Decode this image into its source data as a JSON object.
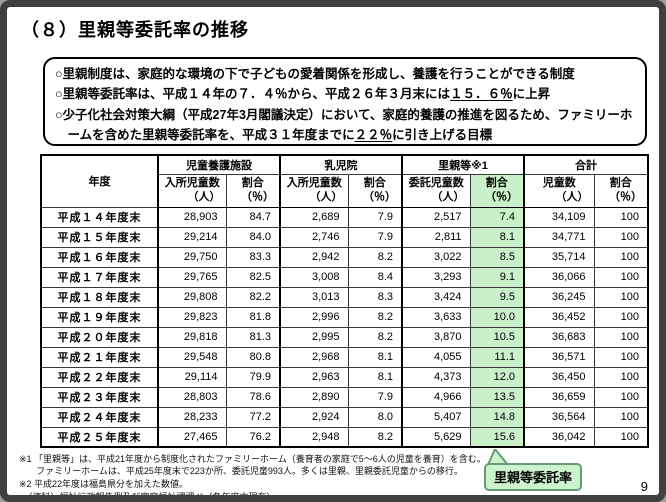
{
  "title": "（８）里親等委託率の推移",
  "summary_box": {
    "bullet1": "○里親制度は、家庭的な環境の下で子どもの愛着関係を形成し、養護を行うことができる制度",
    "bullet2_pre": "○里親等委託率は、平成１４年の７．４％から、平成２６年３月末には",
    "bullet2_underline": "１５．６％",
    "bullet2_post": "に上昇",
    "bullet3_pre": "○少子化社会対策大綱（平成27年3月閣議決定）において、家庭的養護の推進を図るため、ファミリーホームを含めた里親等委託率を、平成３１年度までに",
    "bullet3_underline": "２２％",
    "bullet3_post": "に引き上げる目標"
  },
  "table": {
    "header": {
      "year": "年度",
      "g1": {
        "label": "児童養護施設",
        "c1": "入所児童数",
        "c1u": "（人）",
        "c2": "割合",
        "c2u": "（％）"
      },
      "g2": {
        "label": "乳児院",
        "c1": "入所児童数",
        "c1u": "（人）",
        "c2": "割合",
        "c2u": "（％）"
      },
      "g3": {
        "label": "里親等※1",
        "c1": "委託児童数",
        "c1u": "（人）",
        "c2": "割合",
        "c2u": "（％）"
      },
      "g4": {
        "label": "合計",
        "c1": "児童数",
        "c1u": "（人）",
        "c2": "割合",
        "c2u": "（％）"
      }
    },
    "rows": [
      {
        "year": "平成１４年度末",
        "values": [
          "28,903",
          "84.7",
          "2,689",
          "7.9",
          "2,517",
          "7.4",
          "34,109",
          "100"
        ]
      },
      {
        "year": "平成１５年度末",
        "values": [
          "29,214",
          "84.0",
          "2,746",
          "7.9",
          "2,811",
          "8.1",
          "34,771",
          "100"
        ]
      },
      {
        "year": "平成１６年度末",
        "values": [
          "29,750",
          "83.3",
          "2,942",
          "8.2",
          "3,022",
          "8.5",
          "35,714",
          "100"
        ]
      },
      {
        "year": "平成１７年度末",
        "values": [
          "29,765",
          "82.5",
          "3,008",
          "8.4",
          "3,293",
          "9.1",
          "36,066",
          "100"
        ]
      },
      {
        "year": "平成１８年度末",
        "values": [
          "29,808",
          "82.2",
          "3,013",
          "8.3",
          "3,424",
          "9.5",
          "36,245",
          "100"
        ]
      },
      {
        "year": "平成１９年度末",
        "values": [
          "29,823",
          "81.8",
          "2,996",
          "8.2",
          "3,633",
          "10.0",
          "36,452",
          "100"
        ]
      },
      {
        "year": "平成２０年度末",
        "values": [
          "29,818",
          "81.3",
          "2,995",
          "8.2",
          "3,870",
          "10.5",
          "36,683",
          "100"
        ]
      },
      {
        "year": "平成２１年度末",
        "values": [
          "29,548",
          "80.8",
          "2,968",
          "8.1",
          "4,055",
          "11.1",
          "36,571",
          "100"
        ]
      },
      {
        "year": "平成２２年度末",
        "values": [
          "29,114",
          "79.9",
          "2,963",
          "8.1",
          "4,373",
          "12.0",
          "36,450",
          "100"
        ]
      },
      {
        "year": "平成２３年度末",
        "values": [
          "28,803",
          "78.6",
          "2,890",
          "7.9",
          "4,966",
          "13.5",
          "36,659",
          "100"
        ]
      },
      {
        "year": "平成２４年度末",
        "values": [
          "28,233",
          "77.2",
          "2,924",
          "8.0",
          "5,407",
          "14.8",
          "36,564",
          "100"
        ]
      },
      {
        "year": "平成２５年度末",
        "values": [
          "27,465",
          "76.2",
          "2,948",
          "8.2",
          "5,629",
          "15.6",
          "36,042",
          "100"
        ]
      }
    ]
  },
  "notes": {
    "note1_line1": "※1 「里親等」は、平成21年度から制度化されたファミリーホーム（養育者の家庭で5～6人の児童を養育）を含む。",
    "note1_line2": "ファミリーホームは、平成25年度末で223か所、委託児童993人。多くは里親、里親委託児童からの移行。",
    "note2": "※2 平成22年度は福島県分を加えた数値。",
    "source": "（資料）福祉行政報告例及び家庭福祉課調べ（各年度末現在）"
  },
  "callout": {
    "label": "里親等委託率"
  },
  "page": {
    "number": "9"
  },
  "colors": {
    "highlight_green": "#c9f0c9",
    "callout_fill": "#cdf3cd",
    "callout_border": "#679b77",
    "frame": "#3f3f3f"
  }
}
